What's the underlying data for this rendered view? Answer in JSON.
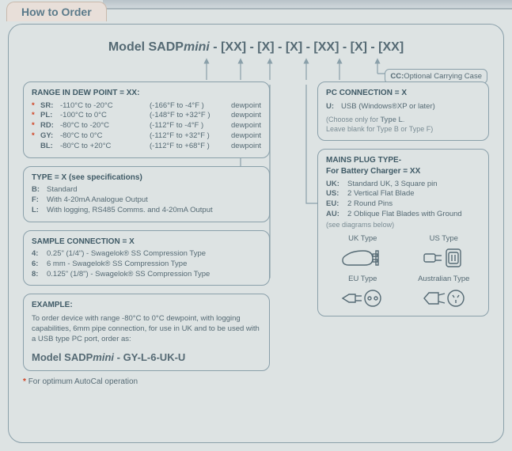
{
  "tab": "How to Order",
  "model_prefix": "Model SADP",
  "model_suffix_italic": "mini",
  "model_pattern": " - [XX] - [X] - [X] - [XX] - [X] - [XX]",
  "cc_label": "CC:",
  "cc_text": "Optional Carrying Case",
  "range": {
    "hd": "RANGE IN DEW POINT = XX:",
    "rows": [
      {
        "star": "*",
        "code": "SR:",
        "r": "-110°C  to   -20°C",
        "f": "(-166°F to -4°F )",
        "t": "dewpoint"
      },
      {
        "star": "*",
        "code": "PL:",
        "r": "-100°C  to      0°C",
        "f": "(-148°F to +32°F )",
        "t": "dewpoint"
      },
      {
        "star": "*",
        "code": "RD:",
        "r": "-80°C    to   -20°C",
        "f": "(-112°F to -4°F )",
        "t": "dewpoint"
      },
      {
        "star": "*",
        "code": "GY:",
        "r": "-80°C    to      0°C",
        "f": "(-112°F to +32°F )",
        "t": "dewpoint"
      },
      {
        "star": "",
        "code": "BL:",
        "r": "-80°C    to  +20°C",
        "f": "(-112°F to +68°F )",
        "t": "dewpoint"
      }
    ]
  },
  "type": {
    "hd": "TYPE = X   (see specifications)",
    "rows": [
      {
        "code": "B:",
        "txt": "Standard"
      },
      {
        "code": "F:",
        "txt": "With 4-20mA Analogue Output"
      },
      {
        "code": "L:",
        "txt": "With logging, RS485 Comms. and 4-20mA Output"
      }
    ]
  },
  "sample": {
    "hd": "SAMPLE CONNECTION = X",
    "rows": [
      {
        "code": "4:",
        "txt": "0.25\" (1/4\") -  Swagelok® SS Compression Type"
      },
      {
        "code": "6:",
        "txt": "6 mm -            Swagelok® SS Compression Type"
      },
      {
        "code": "8:",
        "txt": "0.125\" (1/8\") - Swagelok® SS Compression Type"
      }
    ]
  },
  "example": {
    "hd": "EXAMPLE:",
    "body": "To order device with range -80°C to 0°C dewpoint, with logging capabilities, 6mm pipe connection, for use in UK and to be used with a USB type PC port, order as:",
    "model": "Model SADPmini - GY-L-6-UK-U",
    "model_prefix": "Model SADP",
    "model_italic": "mini",
    "model_rest": " - GY-L-6-UK-U"
  },
  "pc": {
    "hd": "PC CONNECTION = X",
    "rows": [
      {
        "code": "U:",
        "txt": "USB (Windows®XP or later)"
      }
    ],
    "note": "(Choose only for Type L.\nLeave blank for Type B or Type F)",
    "note1": "(Choose only for ",
    "note_bold": "Type L",
    "note2": ".",
    "note3": "Leave blank for Type B or Type F)"
  },
  "plug": {
    "hd1": "MAINS PLUG TYPE-",
    "hd2": "For Battery Charger = XX",
    "rows": [
      {
        "code": "UK:",
        "txt": "Standard UK, 3 Square pin"
      },
      {
        "code": "US:",
        "txt": "2 Vertical Flat Blade"
      },
      {
        "code": "EU:",
        "txt": "2 Round Pins"
      },
      {
        "code": "AU:",
        "txt": "2 Oblique Flat Blades with Ground"
      }
    ],
    "see": "(see diagrams below)",
    "labels": {
      "uk": "UK Type",
      "us": "US Type",
      "eu": "EU Type",
      "au": "Australian Type"
    }
  },
  "footnote": "For optimum AutoCal operation",
  "colors": {
    "border": "#8aa0aa",
    "text": "#556a74",
    "star": "#d04020"
  }
}
